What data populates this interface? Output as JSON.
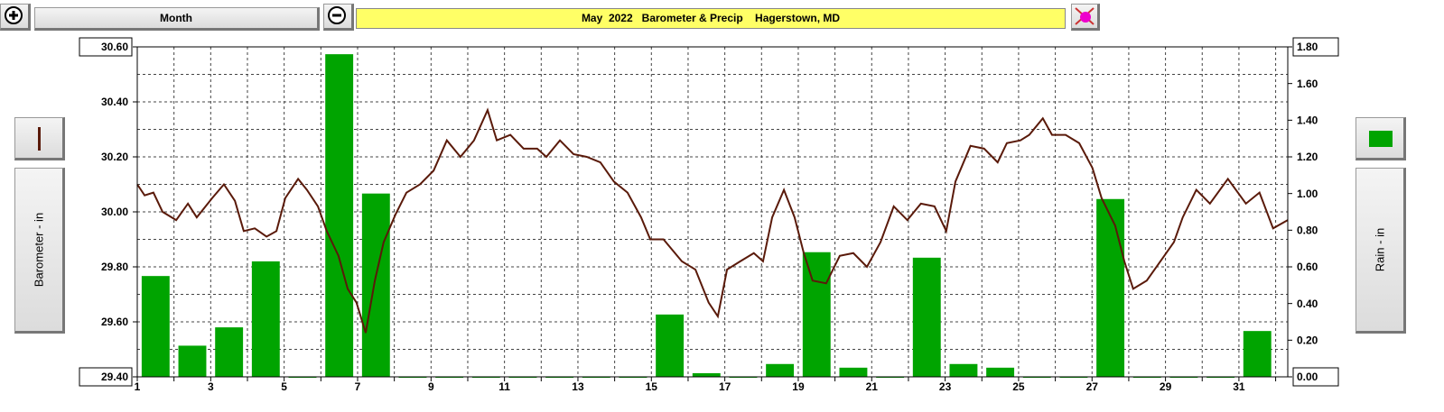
{
  "toolbar": {
    "range": "Month"
  },
  "chart_data": {
    "type": "combo",
    "title": "May  2022   Barometer & Precip    Hagerstown, MD",
    "y_label": "Barometer - in",
    "y2_label": "Rain - in",
    "xlim": [
      1,
      32.33
    ],
    "xticks": [
      1,
      3,
      5,
      7,
      9,
      11,
      13,
      15,
      17,
      19,
      21,
      23,
      25,
      27,
      29,
      31
    ],
    "x_minor_ticks": [
      2,
      4,
      6,
      8,
      10,
      12,
      14,
      16,
      18,
      20,
      22,
      24,
      26,
      28,
      30,
      32
    ],
    "ylim": [
      29.4,
      30.6
    ],
    "yticks": [
      {
        "value": 29.4,
        "label": "29.40"
      },
      {
        "value": 29.6,
        "label": "29.60"
      },
      {
        "value": 29.8,
        "label": "29.80"
      },
      {
        "value": 30.0,
        "label": "30.00"
      },
      {
        "value": 30.2,
        "label": "30.20"
      },
      {
        "value": 30.4,
        "label": "30.40"
      },
      {
        "value": 30.6,
        "label": "30.60"
      }
    ],
    "y_minor_ticks": [
      29.5,
      29.7,
      29.9,
      30.1,
      30.3,
      30.5
    ],
    "y2lim": [
      0,
      1.8
    ],
    "y2ticks": [
      {
        "value": 0,
        "label": "0.00"
      },
      {
        "value": 0.2,
        "label": "0.20"
      },
      {
        "value": 0.4,
        "label": "0.40"
      },
      {
        "value": 0.6,
        "label": "0.60"
      },
      {
        "value": 0.8,
        "label": "0.80"
      },
      {
        "value": 1.0,
        "label": "1.00"
      },
      {
        "value": 1.2,
        "label": "1.20"
      },
      {
        "value": 1.4,
        "label": "1.40"
      },
      {
        "value": 1.6,
        "label": "1.60"
      },
      {
        "value": 1.8,
        "label": "1.80"
      }
    ],
    "grid": true,
    "series": [
      {
        "type": "line",
        "color": "#5a1a0a",
        "x": [
          1.0,
          1.2,
          1.44,
          1.69,
          2.06,
          2.38,
          2.62,
          3.04,
          3.36,
          3.66,
          3.9,
          4.2,
          4.52,
          4.79,
          5.03,
          5.38,
          5.62,
          5.92,
          6.16,
          6.48,
          6.73,
          6.97,
          7.22,
          7.47,
          7.71,
          8.03,
          8.33,
          8.7,
          9.07,
          9.43,
          9.8,
          10.17,
          10.54,
          10.79,
          11.16,
          11.52,
          11.89,
          12.14,
          12.51,
          12.88,
          13.24,
          13.61,
          13.98,
          14.35,
          14.72,
          14.97,
          15.33,
          15.83,
          16.2,
          16.56,
          16.81,
          17.06,
          17.42,
          17.79,
          18.04,
          18.29,
          18.61,
          18.9,
          19.15,
          19.39,
          19.76,
          20.13,
          20.5,
          20.87,
          21.24,
          21.6,
          21.97,
          22.34,
          22.71,
          23.03,
          23.28,
          23.69,
          24.06,
          24.43,
          24.68,
          25.05,
          25.29,
          25.66,
          25.91,
          26.28,
          26.65,
          27.01,
          27.26,
          27.63,
          27.88,
          28.12,
          28.49,
          28.86,
          29.23,
          29.47,
          29.84,
          30.21,
          30.7,
          31.19,
          31.56,
          31.93,
          32.33
        ],
        "values": [
          30.1,
          30.06,
          30.07,
          30.0,
          29.97,
          30.03,
          29.98,
          30.05,
          30.1,
          30.04,
          29.93,
          29.94,
          29.91,
          29.93,
          30.05,
          30.12,
          30.08,
          30.02,
          29.93,
          29.84,
          29.72,
          29.67,
          29.56,
          29.75,
          29.89,
          29.99,
          30.07,
          30.1,
          30.15,
          30.26,
          30.2,
          30.26,
          30.37,
          30.26,
          30.28,
          30.23,
          30.23,
          30.2,
          30.26,
          30.21,
          30.2,
          30.18,
          30.11,
          30.07,
          29.98,
          29.9,
          29.9,
          29.82,
          29.79,
          29.67,
          29.62,
          29.79,
          29.82,
          29.85,
          29.82,
          29.98,
          30.08,
          29.98,
          29.85,
          29.75,
          29.74,
          29.84,
          29.85,
          29.8,
          29.89,
          30.02,
          29.97,
          30.03,
          30.02,
          29.93,
          30.11,
          30.24,
          30.23,
          30.18,
          30.25,
          30.26,
          30.28,
          30.34,
          30.28,
          30.28,
          30.25,
          30.16,
          30.05,
          29.95,
          29.82,
          29.72,
          29.75,
          29.82,
          29.89,
          29.98,
          30.08,
          30.03,
          30.12,
          30.03,
          30.07,
          29.94,
          29.97
        ]
      },
      {
        "type": "bar",
        "axis": "y2",
        "color": "#00a400",
        "x": [
          1,
          2,
          3,
          4,
          5,
          6,
          7,
          8,
          9,
          10,
          11,
          12,
          13,
          14,
          15,
          16,
          17,
          18,
          19,
          20,
          21,
          22,
          23,
          24,
          25,
          26,
          27,
          28,
          29,
          30,
          31
        ],
        "values": [
          0.55,
          0.17,
          0.27,
          0.63,
          0,
          1.76,
          1.0,
          0,
          0,
          0,
          0,
          0,
          0,
          0,
          0.34,
          0.02,
          0,
          0.07,
          0.68,
          0.05,
          0,
          0.65,
          0.07,
          0.05,
          0,
          0,
          0.97,
          0,
          0,
          0,
          0.25
        ]
      }
    ]
  }
}
